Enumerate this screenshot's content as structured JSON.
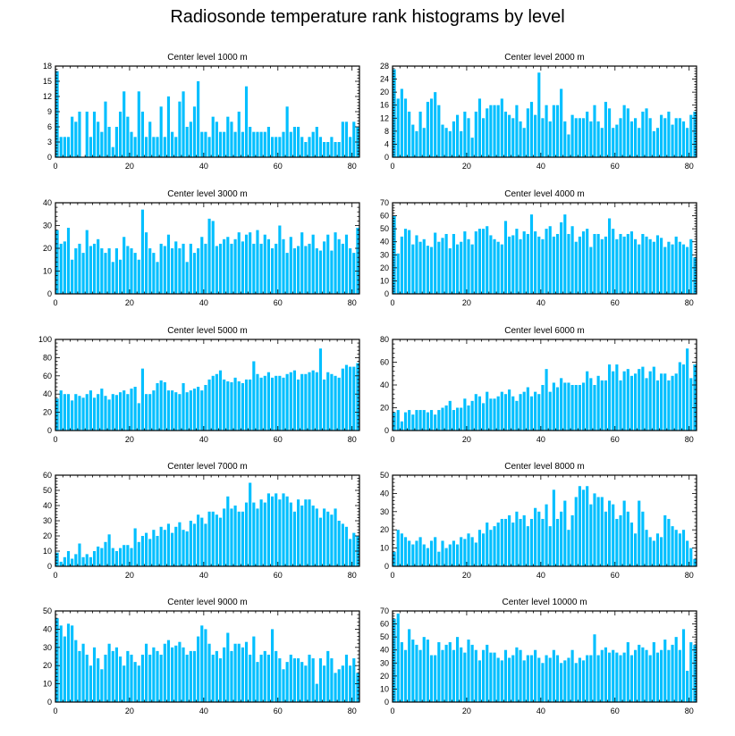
{
  "title": "Radiosonde temperature rank histograms by level",
  "bar_color": "#00bfff",
  "chart_data": [
    {
      "type": "bar",
      "title": "Center level 1000 m",
      "xlim": [
        0,
        82
      ],
      "ylim": [
        0,
        18
      ],
      "xticks": [
        0,
        20,
        40,
        60,
        80
      ],
      "yticks": [
        0,
        3,
        6,
        9,
        12,
        15,
        18
      ],
      "values": [
        17,
        4,
        4,
        4,
        8,
        7,
        9,
        0,
        9,
        4,
        9,
        7,
        5,
        11,
        6,
        2,
        6,
        9,
        13,
        8,
        5,
        4,
        13,
        9,
        4,
        7,
        4,
        4,
        10,
        4,
        12,
        5,
        4,
        11,
        13,
        6,
        7,
        10,
        15,
        5,
        5,
        4,
        8,
        7,
        5,
        5,
        8,
        7,
        5,
        9,
        5,
        14,
        6,
        5,
        5,
        5,
        5,
        6,
        4,
        4,
        4,
        5,
        10,
        5,
        6,
        6,
        4,
        3,
        4,
        5,
        6,
        4,
        3,
        3,
        4,
        3,
        3,
        7,
        7,
        4,
        7,
        6
      ]
    },
    {
      "type": "bar",
      "title": "Center level 2000 m",
      "xlim": [
        0,
        82
      ],
      "ylim": [
        0,
        28
      ],
      "xticks": [
        0,
        20,
        40,
        60,
        80
      ],
      "yticks": [
        0,
        4,
        8,
        12,
        16,
        20,
        24,
        28
      ],
      "values": [
        27,
        18,
        21,
        18,
        14,
        10,
        8,
        14,
        9,
        17,
        18,
        20,
        16,
        10,
        9,
        8,
        11,
        13,
        8,
        14,
        12,
        6,
        14,
        18,
        12,
        15,
        16,
        16,
        16,
        18,
        14,
        13,
        12,
        16,
        11,
        9,
        15,
        17,
        13,
        26,
        12,
        16,
        11,
        16,
        16,
        21,
        11,
        7,
        13,
        12,
        12,
        12,
        14,
        11,
        16,
        11,
        9,
        17,
        15,
        9,
        10,
        12,
        16,
        15,
        11,
        12,
        9,
        14,
        15,
        12,
        8,
        9,
        13,
        12,
        14,
        10,
        12,
        12,
        11,
        9,
        13,
        14
      ]
    },
    {
      "type": "bar",
      "title": "Center level 3000 m",
      "xlim": [
        0,
        82
      ],
      "ylim": [
        0,
        40
      ],
      "xticks": [
        0,
        20,
        40,
        60,
        80
      ],
      "yticks": [
        0,
        10,
        20,
        30,
        40
      ],
      "values": [
        28,
        22,
        23,
        29,
        15,
        20,
        22,
        18,
        28,
        21,
        22,
        24,
        20,
        18,
        20,
        14,
        20,
        15,
        25,
        21,
        20,
        18,
        15,
        37,
        27,
        20,
        18,
        14,
        22,
        21,
        26,
        20,
        23,
        20,
        22,
        14,
        22,
        18,
        20,
        25,
        22,
        33,
        32,
        21,
        22,
        24,
        25,
        22,
        24,
        27,
        23,
        26,
        27,
        22,
        28,
        22,
        26,
        24,
        20,
        22,
        30,
        24,
        18,
        25,
        20,
        21,
        27,
        21,
        22,
        26,
        20,
        19,
        23,
        26,
        19,
        27,
        24,
        22,
        26,
        20,
        18,
        29
      ]
    },
    {
      "type": "bar",
      "title": "Center level 4000 m",
      "xlim": [
        0,
        82
      ],
      "ylim": [
        0,
        70
      ],
      "xticks": [
        0,
        20,
        40,
        60,
        80
      ],
      "yticks": [
        0,
        10,
        20,
        30,
        40,
        50,
        60,
        70
      ],
      "values": [
        60,
        31,
        44,
        50,
        49,
        38,
        45,
        40,
        42,
        37,
        36,
        47,
        40,
        43,
        46,
        35,
        46,
        38,
        40,
        48,
        42,
        38,
        48,
        50,
        50,
        52,
        45,
        42,
        40,
        38,
        56,
        44,
        45,
        50,
        42,
        48,
        46,
        61,
        48,
        44,
        42,
        50,
        52,
        44,
        46,
        55,
        61,
        46,
        52,
        40,
        44,
        48,
        50,
        36,
        46,
        46,
        42,
        44,
        58,
        50,
        42,
        46,
        44,
        46,
        48,
        42,
        38,
        46,
        44,
        42,
        40,
        45,
        43,
        36,
        40,
        38,
        44,
        40,
        38,
        36,
        42,
        28
      ]
    },
    {
      "type": "bar",
      "title": "Center level 5000 m",
      "xlim": [
        0,
        82
      ],
      "ylim": [
        0,
        100
      ],
      "xticks": [
        0,
        20,
        40,
        60,
        80
      ],
      "yticks": [
        0,
        20,
        40,
        60,
        80,
        100
      ],
      "values": [
        35,
        44,
        40,
        40,
        33,
        40,
        38,
        36,
        40,
        44,
        36,
        40,
        46,
        38,
        34,
        40,
        39,
        42,
        44,
        40,
        46,
        48,
        30,
        68,
        40,
        40,
        44,
        52,
        55,
        53,
        44,
        44,
        42,
        40,
        52,
        42,
        44,
        46,
        48,
        44,
        50,
        56,
        60,
        62,
        66,
        56,
        54,
        53,
        58,
        54,
        52,
        56,
        56,
        76,
        62,
        58,
        60,
        64,
        58,
        60,
        60,
        58,
        62,
        64,
        66,
        56,
        62,
        62,
        64,
        66,
        64,
        90,
        56,
        64,
        62,
        60,
        58,
        68,
        72,
        70,
        70,
        74
      ]
    },
    {
      "type": "bar",
      "title": "Center level 6000 m",
      "xlim": [
        0,
        82
      ],
      "ylim": [
        0,
        80
      ],
      "xticks": [
        0,
        20,
        40,
        60,
        80
      ],
      "yticks": [
        0,
        20,
        40,
        60,
        80
      ],
      "values": [
        16,
        18,
        8,
        16,
        18,
        14,
        18,
        18,
        18,
        16,
        18,
        14,
        18,
        20,
        22,
        26,
        18,
        20,
        20,
        28,
        22,
        26,
        32,
        30,
        24,
        34,
        28,
        28,
        30,
        34,
        32,
        36,
        30,
        26,
        32,
        34,
        38,
        30,
        34,
        32,
        40,
        54,
        34,
        42,
        38,
        46,
        42,
        42,
        40,
        40,
        40,
        42,
        52,
        46,
        40,
        48,
        44,
        44,
        58,
        52,
        58,
        44,
        52,
        54,
        48,
        50,
        54,
        56,
        46,
        52,
        56,
        44,
        50,
        50,
        44,
        48,
        50,
        60,
        58,
        72,
        46,
        58
      ]
    },
    {
      "type": "bar",
      "title": "Center level 7000 m",
      "xlim": [
        0,
        82
      ],
      "ylim": [
        0,
        60
      ],
      "xticks": [
        0,
        20,
        40,
        60,
        80
      ],
      "yticks": [
        0,
        10,
        20,
        30,
        40,
        50,
        60
      ],
      "values": [
        9,
        3,
        6,
        10,
        5,
        8,
        15,
        6,
        8,
        6,
        10,
        13,
        12,
        16,
        21,
        12,
        10,
        12,
        14,
        14,
        12,
        25,
        16,
        20,
        22,
        18,
        24,
        20,
        26,
        24,
        28,
        22,
        26,
        29,
        24,
        23,
        30,
        28,
        34,
        32,
        28,
        36,
        36,
        34,
        32,
        38,
        46,
        38,
        40,
        36,
        36,
        42,
        55,
        42,
        38,
        44,
        42,
        48,
        46,
        48,
        44,
        48,
        46,
        42,
        36,
        44,
        40,
        44,
        44,
        40,
        38,
        32,
        38,
        36,
        34,
        38,
        30,
        28,
        26,
        18,
        22,
        20
      ]
    },
    {
      "type": "bar",
      "title": "Center level 8000 m",
      "xlim": [
        0,
        82
      ],
      "ylim": [
        0,
        50
      ],
      "xticks": [
        0,
        20,
        40,
        60,
        80
      ],
      "yticks": [
        0,
        10,
        20,
        30,
        40,
        50
      ],
      "values": [
        8,
        20,
        18,
        16,
        14,
        12,
        14,
        16,
        12,
        10,
        14,
        16,
        8,
        14,
        10,
        12,
        14,
        12,
        16,
        15,
        18,
        16,
        13,
        20,
        18,
        24,
        20,
        22,
        24,
        26,
        26,
        28,
        24,
        30,
        26,
        28,
        22,
        26,
        32,
        30,
        26,
        34,
        22,
        42,
        26,
        30,
        36,
        20,
        28,
        38,
        44,
        42,
        44,
        34,
        40,
        38,
        38,
        30,
        36,
        34,
        26,
        28,
        36,
        30,
        24,
        18,
        36,
        30,
        20,
        16,
        14,
        18,
        16,
        28,
        26,
        22,
        20,
        18,
        20,
        14,
        10,
        4
      ]
    },
    {
      "type": "bar",
      "title": "Center level 9000 m",
      "xlim": [
        0,
        82
      ],
      "ylim": [
        0,
        50
      ],
      "xticks": [
        0,
        20,
        40,
        60,
        80
      ],
      "yticks": [
        0,
        10,
        20,
        30,
        40,
        50
      ],
      "values": [
        46,
        42,
        36,
        43,
        42,
        34,
        28,
        32,
        26,
        20,
        30,
        24,
        18,
        26,
        32,
        28,
        30,
        25,
        20,
        28,
        26,
        22,
        20,
        26,
        32,
        26,
        30,
        28,
        26,
        32,
        34,
        30,
        31,
        33,
        30,
        26,
        28,
        28,
        36,
        42,
        40,
        32,
        26,
        28,
        24,
        30,
        38,
        28,
        32,
        32,
        30,
        33,
        26,
        36,
        22,
        26,
        28,
        26,
        40,
        28,
        24,
        18,
        22,
        26,
        24,
        24,
        22,
        20,
        26,
        24,
        10,
        24,
        20,
        28,
        24,
        16,
        18,
        20,
        26,
        20,
        24,
        16
      ]
    },
    {
      "type": "bar",
      "title": "Center level 10000 m",
      "xlim": [
        0,
        82
      ],
      "ylim": [
        0,
        70
      ],
      "xticks": [
        0,
        20,
        40,
        60,
        80
      ],
      "yticks": [
        0,
        10,
        20,
        30,
        40,
        50,
        60,
        70
      ],
      "values": [
        64,
        68,
        46,
        40,
        56,
        48,
        44,
        40,
        50,
        48,
        36,
        36,
        46,
        40,
        44,
        46,
        40,
        50,
        42,
        38,
        48,
        44,
        40,
        32,
        40,
        44,
        38,
        38,
        34,
        32,
        40,
        34,
        36,
        42,
        40,
        32,
        36,
        36,
        40,
        34,
        30,
        36,
        34,
        40,
        36,
        30,
        32,
        34,
        40,
        30,
        34,
        32,
        36,
        36,
        52,
        36,
        40,
        42,
        38,
        40,
        38,
        36,
        38,
        46,
        36,
        40,
        44,
        42,
        40,
        36,
        46,
        38,
        40,
        48,
        40,
        44,
        50,
        40,
        56,
        24,
        46,
        44
      ]
    }
  ]
}
